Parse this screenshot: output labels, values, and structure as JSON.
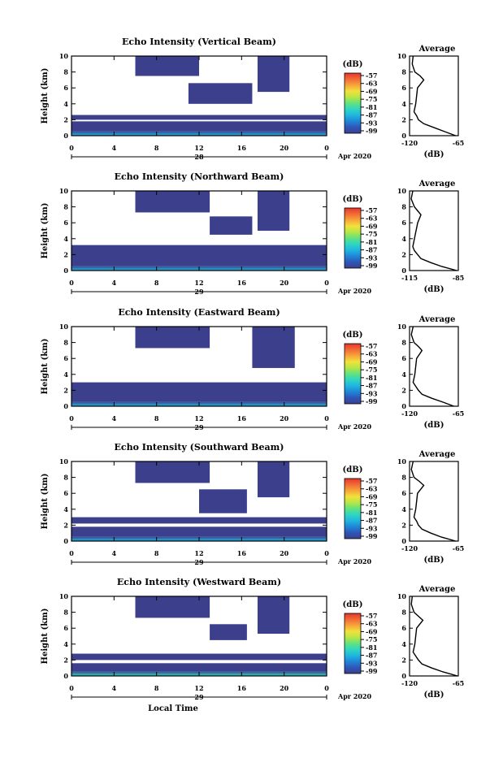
{
  "figure": {
    "xlabel": "Local Time",
    "date_label": "Apr 2020",
    "ylabel": "Height (km)",
    "colorbar_unit": "(dB)",
    "average_title": "Average",
    "average_xlabel": "(dB)"
  },
  "colorbar_ticks": [
    "-57",
    "-63",
    "-69",
    "-75",
    "-81",
    "-87",
    "-93",
    "-99"
  ],
  "colorscale": [
    "#3c3f8c",
    "#2e56b8",
    "#1f86d6",
    "#20b6e0",
    "#2fd6c2",
    "#62e27d",
    "#b7e646",
    "#f2e13a",
    "#f7a43a",
    "#f26b36",
    "#e6342f"
  ],
  "chart_data": [
    {
      "type": "heatmap",
      "title": "Echo Intensity (Vertical Beam)",
      "xlabel": "Local Time",
      "ylabel": "Height (km)",
      "x_ticks": [
        "0",
        "4",
        "8",
        "12",
        "16",
        "20",
        "0"
      ],
      "x_range": [
        0,
        24
      ],
      "y_ticks": [
        "0",
        "2",
        "4",
        "6",
        "8",
        "10"
      ],
      "y_range": [
        0,
        10
      ],
      "date_tick": "28",
      "date_tick_x": 12,
      "colorbar": {
        "unit": "(dB)",
        "min": -99,
        "max": -57
      },
      "layers": [
        {
          "x0": 0,
          "x1": 24,
          "y0": 0,
          "y1": 0.6,
          "level": 0.3
        },
        {
          "x0": 0,
          "x1": 24,
          "y0": 0.6,
          "y1": 1.8,
          "level": 0.0
        },
        {
          "x0": 0,
          "x1": 24,
          "y0": 2.0,
          "y1": 2.6,
          "level": 0.0
        },
        {
          "x0": 11,
          "x1": 17,
          "y0": 4.0,
          "y1": 6.6,
          "level": 0.0
        },
        {
          "x0": 6,
          "x1": 12,
          "y0": 7.5,
          "y1": 10,
          "level": 0.0
        },
        {
          "x0": 17.5,
          "x1": 20.5,
          "y0": 5.5,
          "y1": 10,
          "level": 0.0
        }
      ],
      "average": {
        "xlim": [
          -120,
          -65
        ],
        "x_ticks": [
          "-120",
          "-65"
        ],
        "xlabel": "(dB)",
        "y": [
          0,
          0.5,
          1,
          1.5,
          2,
          2.5,
          3,
          4,
          5,
          6,
          7,
          7.5,
          8,
          9,
          10
        ],
        "x": [
          -68,
          -80,
          -92,
          -104,
          -110,
          -112,
          -115,
          -113,
          -112,
          -111,
          -104,
          -108,
          -114,
          -117,
          -116
        ]
      }
    },
    {
      "type": "heatmap",
      "title": "Echo Intensity (Northward Beam)",
      "xlabel": "Local Time",
      "ylabel": "Height (km)",
      "x_ticks": [
        "0",
        "4",
        "8",
        "12",
        "16",
        "20",
        "0"
      ],
      "x_range": [
        0,
        24
      ],
      "y_ticks": [
        "0",
        "2",
        "4",
        "6",
        "8",
        "10"
      ],
      "y_range": [
        0,
        10
      ],
      "date_tick": "29",
      "date_tick_x": 12,
      "colorbar": {
        "unit": "(dB)",
        "min": -99,
        "max": -57
      },
      "layers": [
        {
          "x0": 0,
          "x1": 24,
          "y0": 0,
          "y1": 0.6,
          "level": 0.25
        },
        {
          "x0": 0,
          "x1": 24,
          "y0": 0.6,
          "y1": 3.2,
          "level": 0.0
        },
        {
          "x0": 13,
          "x1": 17,
          "y0": 4.5,
          "y1": 6.8,
          "level": 0.0
        },
        {
          "x0": 6,
          "x1": 13,
          "y0": 7.3,
          "y1": 10,
          "level": 0.0
        },
        {
          "x0": 17.5,
          "x1": 20.5,
          "y0": 5.0,
          "y1": 10,
          "level": 0.0
        }
      ],
      "average": {
        "xlim": [
          -115,
          -85
        ],
        "x_ticks": [
          "-115",
          "-85"
        ],
        "xlabel": "(dB)",
        "y": [
          0,
          0.5,
          1,
          1.5,
          2,
          2.5,
          3,
          4,
          5,
          6,
          7,
          7.5,
          8,
          9,
          10
        ],
        "x": [
          -86,
          -95,
          -102,
          -108,
          -110,
          -112,
          -113,
          -112,
          -111,
          -110,
          -108,
          -110,
          -112,
          -114,
          -113
        ]
      }
    },
    {
      "type": "heatmap",
      "title": "Echo Intensity (Eastward Beam)",
      "xlabel": "Local Time",
      "ylabel": "Height (km)",
      "x_ticks": [
        "0",
        "4",
        "8",
        "12",
        "16",
        "20",
        "0"
      ],
      "x_range": [
        0,
        24
      ],
      "y_ticks": [
        "0",
        "2",
        "4",
        "6",
        "8",
        "10"
      ],
      "y_range": [
        0,
        10
      ],
      "date_tick": "29",
      "date_tick_x": 12,
      "colorbar": {
        "unit": "(dB)",
        "min": -99,
        "max": -57
      },
      "layers": [
        {
          "x0": 0,
          "x1": 24,
          "y0": 0,
          "y1": 0.6,
          "level": 0.3
        },
        {
          "x0": 0,
          "x1": 24,
          "y0": 0.6,
          "y1": 3.0,
          "level": 0.0
        },
        {
          "x0": 17,
          "x1": 21,
          "y0": 4.8,
          "y1": 10,
          "level": 0.0
        },
        {
          "x0": 6,
          "x1": 13,
          "y0": 7.3,
          "y1": 10,
          "level": 0.0
        }
      ],
      "average": {
        "xlim": [
          -120,
          -65
        ],
        "x_ticks": [
          "-120",
          "-65"
        ],
        "xlabel": "(dB)",
        "y": [
          0,
          0.5,
          1,
          1.5,
          2,
          2.5,
          3,
          4,
          5,
          6,
          7,
          7.5,
          8,
          9,
          10
        ],
        "x": [
          -70,
          -82,
          -95,
          -106,
          -110,
          -113,
          -116,
          -114,
          -113,
          -112,
          -106,
          -110,
          -115,
          -118,
          -116
        ]
      }
    },
    {
      "type": "heatmap",
      "title": "Echo Intensity (Southward Beam)",
      "xlabel": "Local Time",
      "ylabel": "Height (km)",
      "x_ticks": [
        "0",
        "4",
        "8",
        "12",
        "16",
        "20",
        "0"
      ],
      "x_range": [
        0,
        24
      ],
      "y_ticks": [
        "0",
        "2",
        "4",
        "6",
        "8",
        "10"
      ],
      "y_range": [
        0,
        10
      ],
      "date_tick": "29",
      "date_tick_x": 12,
      "colorbar": {
        "unit": "(dB)",
        "min": -99,
        "max": -57
      },
      "layers": [
        {
          "x0": 0,
          "x1": 24,
          "y0": 0,
          "y1": 0.6,
          "level": 0.25
        },
        {
          "x0": 0,
          "x1": 24,
          "y0": 0.6,
          "y1": 1.8,
          "level": 0.0
        },
        {
          "x0": 0,
          "x1": 24,
          "y0": 2.2,
          "y1": 3.0,
          "level": 0.0
        },
        {
          "x0": 12,
          "x1": 16.5,
          "y0": 3.5,
          "y1": 6.5,
          "level": 0.0
        },
        {
          "x0": 6,
          "x1": 13,
          "y0": 7.3,
          "y1": 10,
          "level": 0.0
        },
        {
          "x0": 17.5,
          "x1": 20.5,
          "y0": 5.5,
          "y1": 10,
          "level": 0.0
        }
      ],
      "average": {
        "xlim": [
          -120,
          -65
        ],
        "x_ticks": [
          "-120",
          "-65"
        ],
        "xlabel": "(dB)",
        "y": [
          0,
          0.5,
          1,
          1.5,
          2,
          2.5,
          3,
          4,
          5,
          6,
          7,
          7.5,
          8,
          9,
          10
        ],
        "x": [
          -68,
          -84,
          -96,
          -106,
          -110,
          -112,
          -115,
          -113,
          -112,
          -111,
          -104,
          -109,
          -115,
          -118,
          -116
        ]
      }
    },
    {
      "type": "heatmap",
      "title": "Echo Intensity (Westward Beam)",
      "xlabel": "Local Time",
      "ylabel": "Height (km)",
      "x_ticks": [
        "0",
        "4",
        "8",
        "12",
        "16",
        "20",
        "0"
      ],
      "x_range": [
        0,
        24
      ],
      "y_ticks": [
        "0",
        "2",
        "4",
        "6",
        "8",
        "10"
      ],
      "y_range": [
        0,
        10
      ],
      "date_tick": "29",
      "date_tick_x": 12,
      "colorbar": {
        "unit": "(dB)",
        "min": -99,
        "max": -57
      },
      "layers": [
        {
          "x0": 0,
          "x1": 24,
          "y0": 0,
          "y1": 0.6,
          "level": 0.35
        },
        {
          "x0": 0,
          "x1": 24,
          "y0": 0.6,
          "y1": 1.6,
          "level": 0.0
        },
        {
          "x0": 0,
          "x1": 24,
          "y0": 2.0,
          "y1": 2.8,
          "level": 0.0
        },
        {
          "x0": 13,
          "x1": 16.5,
          "y0": 4.5,
          "y1": 6.5,
          "level": 0.0
        },
        {
          "x0": 6,
          "x1": 13,
          "y0": 7.3,
          "y1": 10,
          "level": 0.0
        },
        {
          "x0": 17.5,
          "x1": 20.5,
          "y0": 5.3,
          "y1": 10,
          "level": 0.0
        }
      ],
      "average": {
        "xlim": [
          -120,
          -65
        ],
        "x_ticks": [
          "-120",
          "-65"
        ],
        "xlabel": "(dB)",
        "y": [
          0,
          0.5,
          1,
          1.5,
          2,
          2.5,
          3,
          4,
          5,
          6,
          7,
          7.5,
          8,
          9,
          10
        ],
        "x": [
          -66,
          -82,
          -95,
          -106,
          -110,
          -113,
          -116,
          -114,
          -113,
          -112,
          -105,
          -110,
          -115,
          -118,
          -117
        ]
      }
    }
  ]
}
